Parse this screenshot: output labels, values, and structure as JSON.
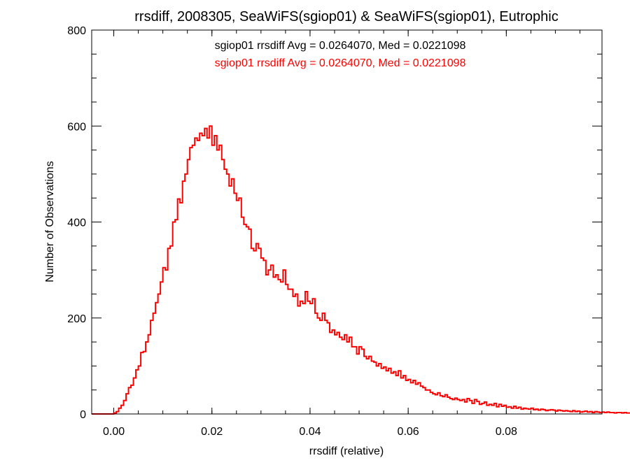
{
  "chart_data": {
    "type": "histogram",
    "title": "rrsdiff, 2008305, SeaWiFS(sgiop01) & SeaWiFS(sgiop01), Eutrophic",
    "xlabel": "rrsdiff (relative)",
    "ylabel": "Number of Observations",
    "xlim": [
      -0.0045,
      0.0995
    ],
    "ylim": [
      0,
      800
    ],
    "x_ticks": [
      0.0,
      0.02,
      0.04,
      0.06,
      0.08
    ],
    "x_tick_labels": [
      "0.00",
      "0.02",
      "0.04",
      "0.06",
      "0.08"
    ],
    "y_ticks": [
      0,
      200,
      400,
      600,
      800
    ],
    "y_tick_labels": [
      "0",
      "200",
      "400",
      "600",
      "800"
    ],
    "grid": false,
    "bin_width": 0.0005,
    "bin_start": -0.0045,
    "annotations": [
      {
        "text": "sgiop01 rrsdiff Avg = 0.0264070, Med = 0.0221098",
        "color": "#000000"
      },
      {
        "text": "sgiop01 rrsdiff Avg = 0.0264070, Med = 0.0221098",
        "color": "#ff0000"
      }
    ],
    "series": [
      {
        "color": "#ff0000",
        "counts": [
          0,
          0,
          0,
          0,
          0,
          0,
          0,
          0,
          0,
          2,
          5,
          12,
          18,
          28,
          42,
          55,
          60,
          75,
          92,
          100,
          128,
          130,
          150,
          165,
          195,
          210,
          232,
          250,
          275,
          305,
          300,
          345,
          350,
          400,
          405,
          448,
          440,
          485,
          500,
          530,
          555,
          560,
          575,
          570,
          585,
          580,
          595,
          575,
          600,
          560,
          580,
          550,
          560,
          530,
          510,
          500,
          475,
          490,
          460,
          445,
          450,
          410,
          395,
          390,
          385,
          345,
          340,
          355,
          345,
          325,
          320,
          290,
          300,
          310,
          285,
          290,
          280,
          275,
          300,
          270,
          260,
          260,
          245,
          250,
          225,
          235,
          230,
          255,
          235,
          230,
          240,
          210,
          200,
          195,
          210,
          195,
          190,
          170,
          175,
          165,
          170,
          160,
          155,
          165,
          150,
          160,
          140,
          140,
          125,
          140,
          135,
          120,
          115,
          120,
          110,
          108,
          100,
          105,
          95,
          98,
          90,
          95,
          85,
          88,
          80,
          90,
          75,
          80,
          70,
          72,
          65,
          70,
          62,
          65,
          58,
          55,
          50,
          50,
          45,
          42,
          40,
          44,
          38,
          36,
          40,
          35,
          32,
          30,
          33,
          30,
          28,
          30,
          25,
          32,
          28,
          22,
          30,
          26,
          20,
          22,
          25,
          18,
          20,
          18,
          22,
          15,
          20,
          16,
          18,
          14,
          15,
          12,
          16,
          12,
          14,
          10,
          12,
          11,
          10,
          12,
          9,
          10,
          8,
          10,
          9,
          7,
          8,
          9,
          8,
          6,
          8,
          7,
          6,
          7,
          6,
          5,
          7,
          5,
          6,
          4,
          5,
          6,
          4,
          5,
          3,
          5,
          4,
          3,
          4,
          3,
          4,
          3,
          3,
          2,
          3,
          3,
          2,
          3,
          2,
          2,
          1,
          2,
          2,
          1,
          1
        ]
      }
    ]
  }
}
